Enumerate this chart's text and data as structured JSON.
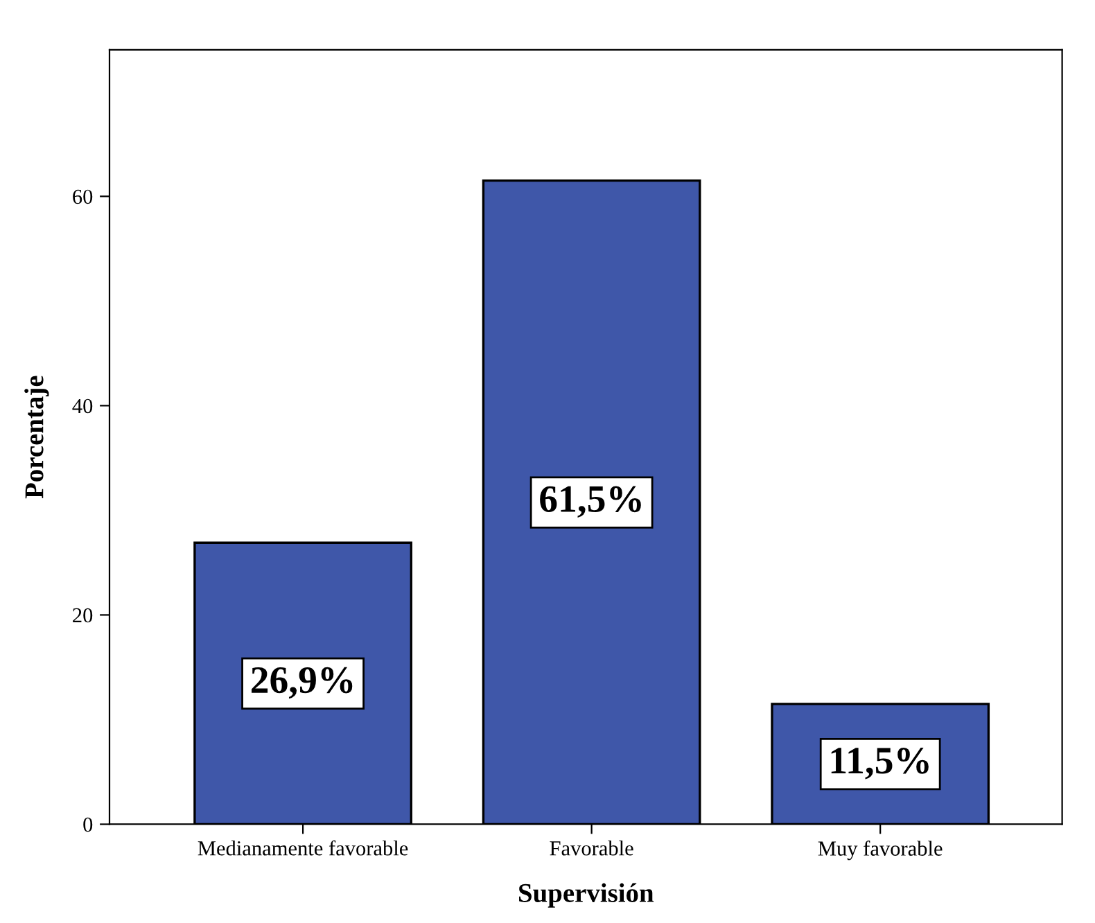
{
  "chart_data": {
    "type": "bar",
    "xlabel": "Supervisión",
    "ylabel": "Porcentaje",
    "categories": [
      "Medianamente favorable",
      "Favorable",
      "Muy favorable"
    ],
    "values": [
      26.9,
      61.5,
      11.5
    ],
    "color": "#3f57a9",
    "value_labels": [
      "26,9%",
      "61,5%",
      "11,5%"
    ],
    "ylim": [
      0,
      74
    ],
    "yticks": [
      0,
      20,
      40,
      60
    ],
    "grid": false,
    "legend": false
  }
}
